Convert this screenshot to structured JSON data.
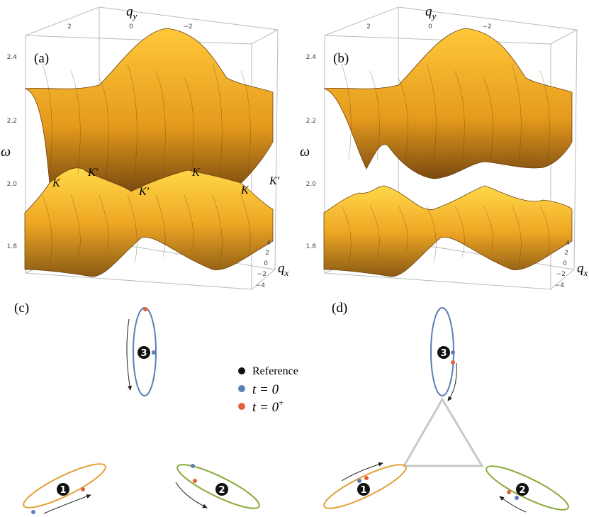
{
  "panel_a": {
    "label": "(a)",
    "omega_label": "ω",
    "q_y_label": {
      "base": "q",
      "sub": "y"
    },
    "q_x_label": {
      "base": "q",
      "sub": "x"
    },
    "q_y_ticks": [
      "2",
      "0",
      "−2"
    ],
    "omega_ticks": [
      "2.4",
      "2.2",
      "2.0",
      "1.8"
    ],
    "q_x_ticks": [
      "4",
      "2",
      "0",
      "−2",
      "−4"
    ],
    "points": [
      "K",
      "K′",
      "K′",
      "K",
      "K",
      "K′"
    ]
  },
  "panel_b": {
    "label": "(b)",
    "omega_label": "ω",
    "q_y_label": {
      "base": "q",
      "sub": "y"
    },
    "q_x_label": {
      "base": "q",
      "sub": "x"
    },
    "q_y_ticks": [
      "2",
      "0",
      "−2"
    ],
    "omega_ticks": [
      "2.4",
      "2.2",
      "2.0",
      "1.8"
    ],
    "q_x_ticks": [
      "4",
      "2",
      "0",
      "−2",
      "−4"
    ]
  },
  "panel_c": {
    "label": "(c)",
    "orbits": [
      "1",
      "2",
      "3"
    ]
  },
  "panel_d": {
    "label": "(d)",
    "orbits": [
      "1",
      "2",
      "3"
    ]
  },
  "legend": {
    "reference": "Reference",
    "t0": "t = 0",
    "t0plus": {
      "base": "t = 0",
      "sup": "+"
    }
  }
}
